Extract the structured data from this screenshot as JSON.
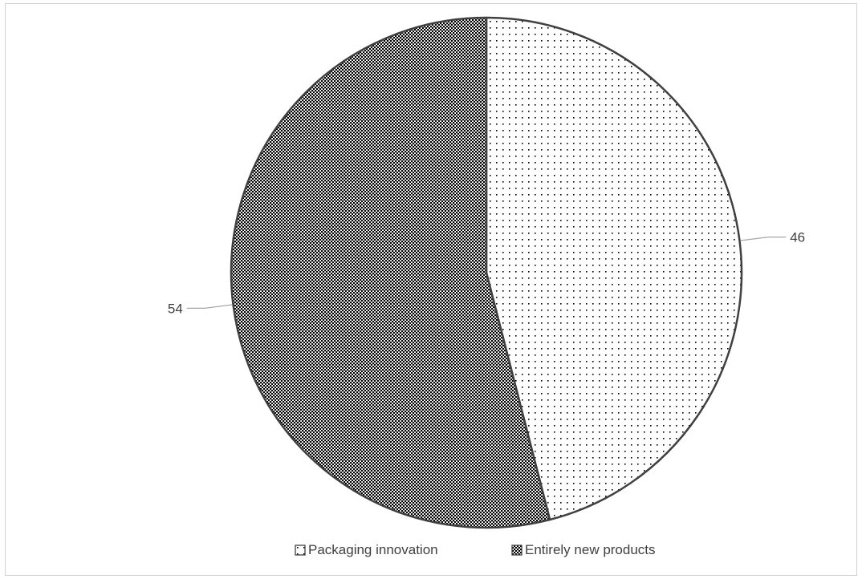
{
  "chart_data": {
    "type": "pie",
    "categories": [
      "Packaging innovation",
      "Entirely new products"
    ],
    "values": [
      46,
      54
    ],
    "data_labels": [
      "46",
      "54"
    ],
    "start_angle_deg": 0,
    "direction": "clockwise",
    "slice_patterns": [
      "sparse-dots",
      "dense-dots"
    ],
    "legend": {
      "position": "bottom",
      "entries": [
        "Packaging innovation",
        "Entirely new products"
      ]
    },
    "colors": {
      "slice_outline": "#404040",
      "pattern_ink": "#000000",
      "background": "#ffffff",
      "label_text": "#404040",
      "leader_line": "#a6a6a6"
    }
  }
}
